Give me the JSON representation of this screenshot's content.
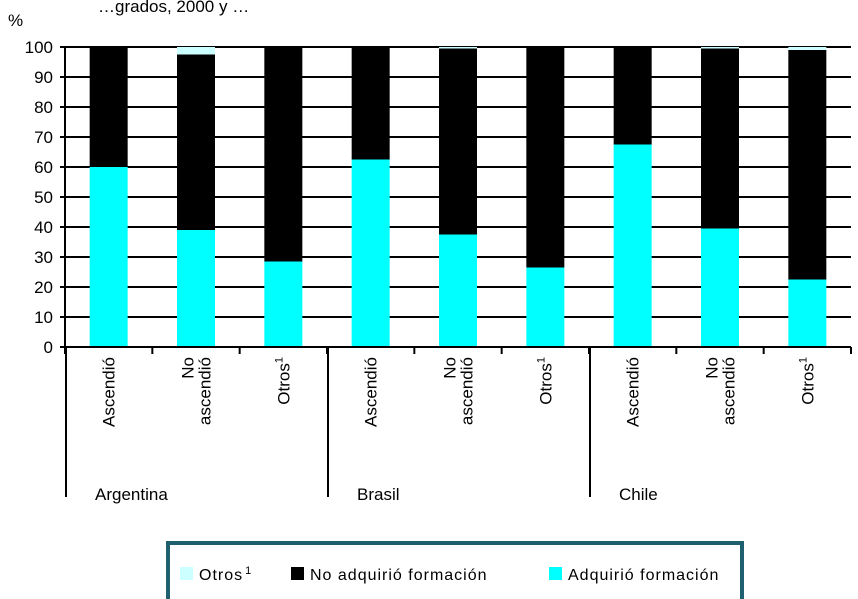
{
  "chart_data": {
    "type": "bar",
    "stacked": true,
    "title": "…grados, 2000 y …",
    "ylabel": "%",
    "ylim": [
      0,
      100
    ],
    "yticks": [
      0,
      10,
      20,
      30,
      40,
      50,
      60,
      70,
      80,
      90,
      100
    ],
    "grid": true,
    "legend_position": "bottom",
    "groups": [
      "Argentina",
      "Brasil",
      "Chile"
    ],
    "categories": [
      {
        "group": "Argentina",
        "label": [
          "Ascendió"
        ]
      },
      {
        "group": "Argentina",
        "label": [
          "No",
          "ascendió"
        ]
      },
      {
        "group": "Argentina",
        "label": [
          "Otros",
          "1"
        ],
        "superscript": true
      },
      {
        "group": "Brasil",
        "label": [
          "Ascendió"
        ]
      },
      {
        "group": "Brasil",
        "label": [
          "No",
          "ascendió"
        ]
      },
      {
        "group": "Brasil",
        "label": [
          "Otros",
          "1"
        ],
        "superscript": true
      },
      {
        "group": "Chile",
        "label": [
          "Ascendió"
        ]
      },
      {
        "group": "Chile",
        "label": [
          "No",
          "ascendió"
        ]
      },
      {
        "group": "Chile",
        "label": [
          "Otros",
          "1"
        ],
        "superscript": true
      }
    ],
    "series": [
      {
        "name": "Adquirió formación",
        "color": "#00ffff",
        "values": [
          60,
          39,
          28.5,
          62.5,
          37.5,
          26.5,
          67.5,
          39.5,
          22.5
        ]
      },
      {
        "name": "No adquirió formación",
        "color": "#000000",
        "values": [
          40,
          58.5,
          71.5,
          37.5,
          62,
          73.5,
          32.5,
          60,
          76.5
        ]
      },
      {
        "name": "Otros",
        "name_superscript": "1",
        "color": "#ccffff",
        "values": [
          0,
          2.5,
          0,
          0,
          0.5,
          0,
          0,
          0.5,
          1
        ]
      }
    ],
    "legend_order": [
      2,
      1,
      0
    ]
  }
}
